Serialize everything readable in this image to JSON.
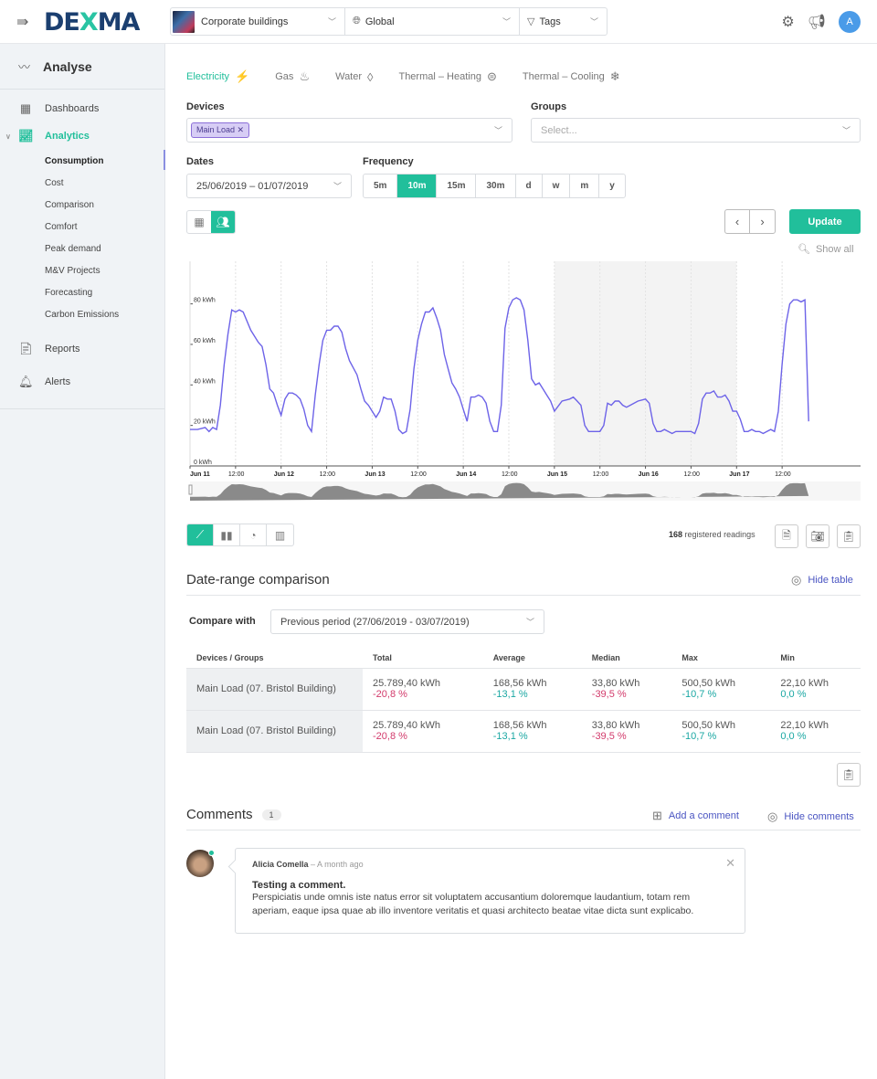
{
  "topbar": {
    "logo": {
      "part1": "DE",
      "part2": "X",
      "part3": "MA"
    },
    "context": {
      "building": "Corporate buildings",
      "location": "Global",
      "tags": "Tags"
    },
    "avatar_initial": "A"
  },
  "sidebar": {
    "section_title": "Analyse",
    "items": [
      {
        "label": "Dashboards"
      },
      {
        "label": "Analytics",
        "active": true
      },
      {
        "label": "Reports"
      },
      {
        "label": "Alerts"
      }
    ],
    "analytics_sub": [
      {
        "label": "Consumption",
        "current": true
      },
      {
        "label": "Cost"
      },
      {
        "label": "Comparison"
      },
      {
        "label": "Comfort"
      },
      {
        "label": "Peak demand"
      },
      {
        "label": "M&V Projects"
      },
      {
        "label": "Forecasting"
      },
      {
        "label": "Carbon Emissions"
      }
    ]
  },
  "tabs": [
    {
      "label": "Electricity",
      "icon": "⚡",
      "active": true
    },
    {
      "label": "Gas",
      "icon": "🔥︎"
    },
    {
      "label": "Water",
      "icon": "💧︎"
    },
    {
      "label": "Thermal – Heating",
      "icon": "♨"
    },
    {
      "label": "Thermal – Cooling",
      "icon": "❄"
    }
  ],
  "filters": {
    "devices_label": "Devices",
    "devices_chip": "Main Load",
    "groups_label": "Groups",
    "groups_placeholder": "Select...",
    "dates_label": "Dates",
    "dates_value": "25/06/2019 – 01/07/2019",
    "frequency_label": "Frequency",
    "frequency_options": [
      "5m",
      "10m",
      "15m",
      "30m",
      "d",
      "w",
      "m",
      "y"
    ],
    "frequency_selected": "10m"
  },
  "toolbar": {
    "update_label": "Update",
    "show_all_label": "Show all"
  },
  "chart_data": {
    "type": "line",
    "title": "",
    "xlabel": "",
    "ylabel": "kWh",
    "ylim": [
      0,
      100
    ],
    "y_ticks": [
      "0 kWh",
      "20 kWh",
      "40 kWh",
      "60 kWh",
      "80 kWh"
    ],
    "x_ticks": [
      "Jun 11",
      "12:00",
      "Jun 12",
      "12:00",
      "Jun 13",
      "12:00",
      "Jun 14",
      "12:00",
      "Jun 15",
      "12:00",
      "Jun 16",
      "12:00",
      "Jun 17",
      "12:00"
    ],
    "highlight_band": {
      "from": "Jun 15",
      "to": "Jun 17"
    },
    "series": [
      {
        "name": "Main Load",
        "color": "#6d63e8",
        "x_hours": [
          0,
          2,
          4,
          5,
          6,
          7,
          8,
          9,
          10,
          11,
          12,
          13,
          14,
          16,
          18,
          19,
          20,
          21,
          22,
          23,
          24,
          25,
          26,
          27,
          28,
          29,
          30,
          31,
          32,
          33,
          34,
          35,
          36,
          37,
          38,
          39,
          40,
          41,
          42,
          44,
          45,
          46,
          47,
          48,
          49,
          50,
          51,
          52,
          53,
          54,
          55,
          56,
          57,
          58,
          59,
          60,
          61,
          62,
          63,
          64,
          65,
          66,
          67,
          68,
          69,
          70,
          71,
          72,
          73,
          74,
          75,
          76,
          77,
          78,
          79,
          80,
          81,
          82,
          83,
          84,
          85,
          86,
          87,
          88,
          89,
          90,
          91,
          92,
          93,
          94,
          95,
          96,
          98,
          100,
          101,
          102,
          103,
          104,
          105,
          106,
          107,
          108,
          109,
          110,
          111,
          112,
          113,
          114,
          115,
          116,
          118,
          120,
          121,
          122,
          123,
          124,
          125,
          126,
          127,
          128,
          129,
          130,
          131,
          132,
          133,
          134,
          135,
          136,
          137,
          138,
          139,
          140,
          141,
          142,
          143,
          144,
          145,
          146,
          147,
          148,
          149,
          150,
          151,
          152,
          153,
          154,
          155,
          156,
          157,
          158,
          159,
          160,
          161,
          162,
          163,
          164,
          165,
          166
        ],
        "values": [
          18,
          18,
          19,
          17,
          19,
          18,
          30,
          50,
          65,
          77,
          76,
          77,
          76,
          67,
          61,
          59,
          50,
          38,
          36,
          30,
          25,
          33,
          36,
          36,
          35,
          33,
          28,
          20,
          17,
          35,
          50,
          62,
          67,
          67,
          69,
          69,
          66,
          58,
          52,
          45,
          38,
          32,
          30,
          27,
          24,
          27,
          34,
          33,
          33,
          27,
          18,
          16,
          17,
          28,
          48,
          62,
          70,
          76,
          76,
          78,
          73,
          67,
          55,
          48,
          41,
          38,
          34,
          28,
          22,
          34,
          34,
          35,
          34,
          31,
          22,
          17,
          17,
          30,
          68,
          78,
          82,
          83,
          82,
          77,
          62,
          43,
          40,
          41,
          38,
          35,
          32,
          27,
          32,
          33,
          34,
          32,
          30,
          20,
          17,
          17,
          17,
          17,
          20,
          31,
          30,
          32,
          32,
          30,
          29,
          30,
          32,
          33,
          31,
          21,
          17,
          17,
          18,
          17,
          16,
          17,
          17,
          17,
          17,
          17,
          16,
          21,
          33,
          36,
          36,
          37,
          34,
          34,
          35,
          32,
          27,
          27,
          23,
          17,
          17,
          18,
          17,
          17,
          16,
          17,
          18,
          17,
          27,
          50,
          70,
          80,
          82,
          82,
          81,
          82,
          22
        ],
        "note": "approximate readings at ~1h intervals; x_hours measured from Jun 11 00:00"
      }
    ]
  },
  "chart_types": [
    "line",
    "bar",
    "pie",
    "stacked-bar"
  ],
  "readings": {
    "count": "168",
    "label": "registered readings"
  },
  "comparison": {
    "title": "Date-range comparison",
    "hide_table_label": "Hide table",
    "compare_with_label": "Compare with",
    "compare_with_value": "Previous period (27/06/2019 - 03/07/2019)",
    "columns": [
      "Devices / Groups",
      "Total",
      "Average",
      "Median",
      "Max",
      "Min"
    ],
    "rows": [
      {
        "device": "Main Load (07. Bristol Building)",
        "cells": [
          {
            "value": "25.789,40 kWh",
            "delta": "-20,8 %",
            "trend": "neg"
          },
          {
            "value": "168,56 kWh",
            "delta": "-13,1 %",
            "trend": "pos"
          },
          {
            "value": "33,80 kWh",
            "delta": "-39,5 %",
            "trend": "neg"
          },
          {
            "value": "500,50 kWh",
            "delta": "-10,7 %",
            "trend": "pos"
          },
          {
            "value": "22,10 kWh",
            "delta": "0,0 %",
            "trend": "pos"
          }
        ]
      },
      {
        "device": "Main Load (07. Bristol Building)",
        "cells": [
          {
            "value": "25.789,40 kWh",
            "delta": "-20,8 %",
            "trend": "neg"
          },
          {
            "value": "168,56 kWh",
            "delta": "-13,1 %",
            "trend": "pos"
          },
          {
            "value": "33,80 kWh",
            "delta": "-39,5 %",
            "trend": "neg"
          },
          {
            "value": "500,50 kWh",
            "delta": "-10,7 %",
            "trend": "pos"
          },
          {
            "value": "22,10 kWh",
            "delta": "0,0 %",
            "trend": "pos"
          }
        ]
      }
    ]
  },
  "comments": {
    "title": "Comments",
    "count": "1",
    "add_label": "Add a comment",
    "hide_label": "Hide comments",
    "items": [
      {
        "author": "Alicia Comella",
        "time": "– A month ago",
        "title": "Testing a comment.",
        "body": "Perspiciatis unde omnis iste natus error sit voluptatem accusantium doloremque laudantium, totam rem aperiam, eaque ipsa quae ab illo inventore veritatis et quasi architecto beatae vitae dicta sunt explicabo."
      }
    ]
  },
  "colors": {
    "accent": "#21bf9b",
    "line": "#6d63e8",
    "negative": "#d23a6b",
    "positive": "#1aa7a3",
    "link": "#4a55c2"
  }
}
